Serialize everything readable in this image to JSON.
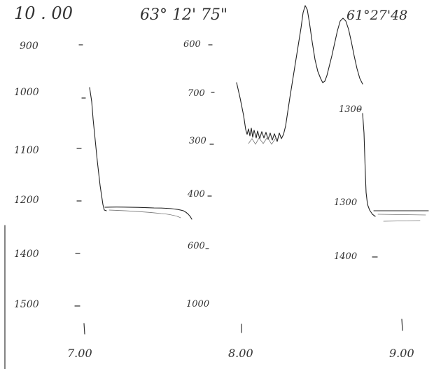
{
  "header": {
    "time": "10 . 00",
    "coord_left": "63° 12' 75\"",
    "coord_right": "61°27'48"
  },
  "scales": {
    "left": [
      "900",
      "1000",
      "1100",
      "1200",
      "1400",
      "1500"
    ],
    "middle": [
      "600",
      "700",
      "300",
      "400",
      "600",
      "1000"
    ],
    "right": [
      "1300",
      "1300",
      "1400"
    ]
  },
  "footer": {
    "times": [
      "7.00",
      "8.00",
      "9.00"
    ]
  }
}
